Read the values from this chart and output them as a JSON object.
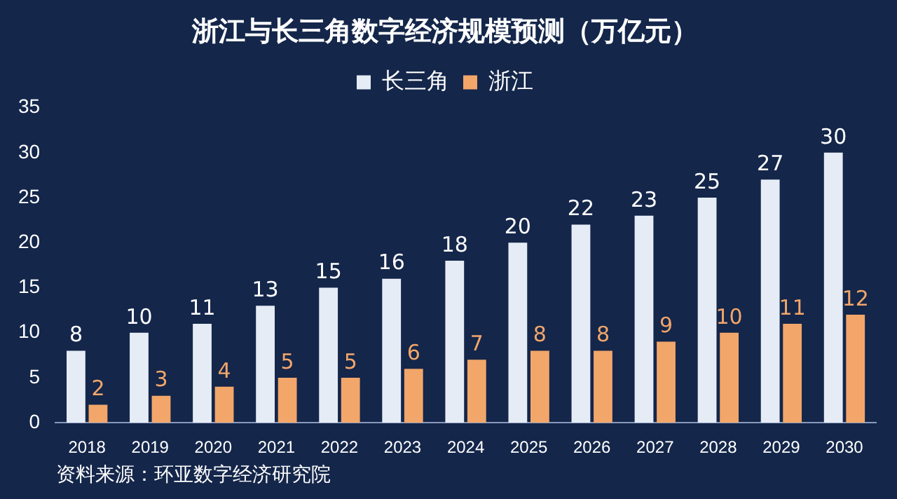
{
  "chart_data": {
    "type": "bar",
    "title": "浙江与长三角数字经济规模预测（万亿元）",
    "categories": [
      "2018",
      "2019",
      "2020",
      "2021",
      "2022",
      "2023",
      "2024",
      "2025",
      "2026",
      "2027",
      "2028",
      "2029",
      "2030"
    ],
    "series": [
      {
        "name": "长三角",
        "color": "#e6ecf5",
        "values": [
          8,
          10,
          11,
          13,
          15,
          16,
          18,
          20,
          22,
          23,
          25,
          27,
          30
        ]
      },
      {
        "name": "浙江",
        "color": "#f2a66a",
        "values": [
          2,
          3,
          4,
          5,
          5,
          6,
          7,
          8,
          8,
          9,
          10,
          11,
          12
        ]
      }
    ],
    "ylim": [
      0,
      35
    ],
    "yticks": [
      0,
      5,
      10,
      15,
      20,
      25,
      30,
      35
    ],
    "grid": false,
    "legend": "top",
    "data_labels": true,
    "annotations": [
      "资料来源：环亚数字经济研究院"
    ]
  }
}
